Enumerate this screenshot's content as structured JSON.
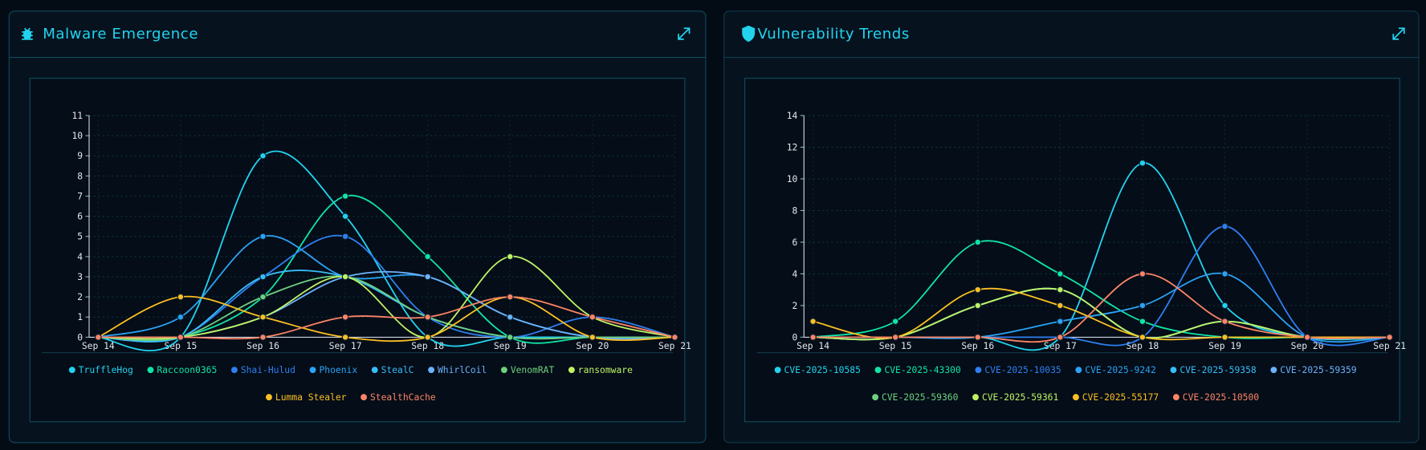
{
  "chart_data": [
    {
      "type": "line",
      "title": "Malware Emergence",
      "categories": [
        "Sep 14",
        "Sep 15",
        "Sep 16",
        "Sep 17",
        "Sep 18",
        "Sep 19",
        "Sep 20",
        "Sep 21"
      ],
      "ylim": [
        0,
        11
      ],
      "yticks": [
        0,
        1,
        2,
        3,
        4,
        5,
        6,
        7,
        8,
        9,
        10,
        11
      ],
      "grid": true,
      "legend": "bottom",
      "series": [
        {
          "name": "TruffleHog",
          "color": "#22d3ee",
          "values": [
            0,
            0,
            9,
            6,
            0,
            0,
            0,
            0
          ]
        },
        {
          "name": "Raccoon0365",
          "color": "#10e5a5",
          "values": [
            0,
            0,
            2,
            7,
            4,
            0,
            0,
            0
          ]
        },
        {
          "name": "Shai-Hulud",
          "color": "#2f7ff0",
          "values": [
            0,
            0,
            3,
            5,
            1,
            0,
            1,
            0
          ]
        },
        {
          "name": "Phoenix",
          "color": "#2ba3f5",
          "values": [
            0,
            1,
            5,
            3,
            3,
            1,
            0,
            0
          ]
        },
        {
          "name": "StealC",
          "color": "#38bdf8",
          "values": [
            0,
            0,
            3,
            3,
            1,
            0,
            0,
            0
          ]
        },
        {
          "name": "WhirlCoil",
          "color": "#6cb2fb",
          "values": [
            0,
            0,
            1,
            3,
            3,
            1,
            0,
            0
          ]
        },
        {
          "name": "VenomRAT",
          "color": "#6fcf7f",
          "values": [
            0,
            0,
            2,
            3,
            1,
            0,
            0,
            0
          ]
        },
        {
          "name": "ransomware",
          "color": "#bef264",
          "values": [
            0,
            0,
            1,
            3,
            0,
            4,
            1,
            0
          ]
        },
        {
          "name": "Lumma Stealer",
          "color": "#fbbf24",
          "values": [
            0,
            2,
            1,
            0,
            0,
            2,
            0,
            0
          ]
        },
        {
          "name": "StealthCache",
          "color": "#fb8466",
          "values": [
            0,
            0,
            0,
            1,
            1,
            2,
            1,
            0
          ]
        }
      ]
    },
    {
      "type": "line",
      "title": "Vulnerability Trends",
      "categories": [
        "Sep 14",
        "Sep 15",
        "Sep 16",
        "Sep 17",
        "Sep 18",
        "Sep 19",
        "Sep 20",
        "Sep 21"
      ],
      "ylim": [
        0,
        14
      ],
      "yticks": [
        0,
        2,
        4,
        6,
        8,
        10,
        12,
        14
      ],
      "grid": true,
      "legend": "bottom",
      "series": [
        {
          "name": "CVE-2025-10585",
          "color": "#22d3ee",
          "values": [
            0,
            0,
            0,
            0,
            11,
            2,
            0,
            0
          ]
        },
        {
          "name": "CVE-2025-43300",
          "color": "#10e5a5",
          "values": [
            0,
            1,
            6,
            4,
            1,
            0,
            0,
            0
          ]
        },
        {
          "name": "CVE-2025-10035",
          "color": "#2f7ff0",
          "values": [
            0,
            0,
            0,
            0,
            0,
            7,
            0,
            0
          ]
        },
        {
          "name": "CVE-2025-9242",
          "color": "#2ba3f5",
          "values": [
            0,
            0,
            0,
            1,
            2,
            4,
            0,
            0
          ]
        },
        {
          "name": "CVE-2025-59358",
          "color": "#38bdf8",
          "values": [
            0,
            0,
            2,
            3,
            0,
            1,
            0,
            0
          ]
        },
        {
          "name": "CVE-2025-59359",
          "color": "#6cb2fb",
          "values": [
            0,
            0,
            2,
            3,
            0,
            1,
            0,
            0
          ]
        },
        {
          "name": "CVE-2025-59360",
          "color": "#6fcf7f",
          "values": [
            0,
            0,
            2,
            3,
            0,
            1,
            0,
            0
          ]
        },
        {
          "name": "CVE-2025-59361",
          "color": "#bef264",
          "values": [
            0,
            0,
            2,
            3,
            0,
            1,
            0,
            0
          ]
        },
        {
          "name": "CVE-2025-55177",
          "color": "#fbbf24",
          "values": [
            1,
            0,
            3,
            2,
            0,
            0,
            0,
            0
          ]
        },
        {
          "name": "CVE-2025-10500",
          "color": "#fb8466",
          "values": [
            0,
            0,
            0,
            0,
            4,
            1,
            0,
            0
          ]
        }
      ]
    }
  ]
}
